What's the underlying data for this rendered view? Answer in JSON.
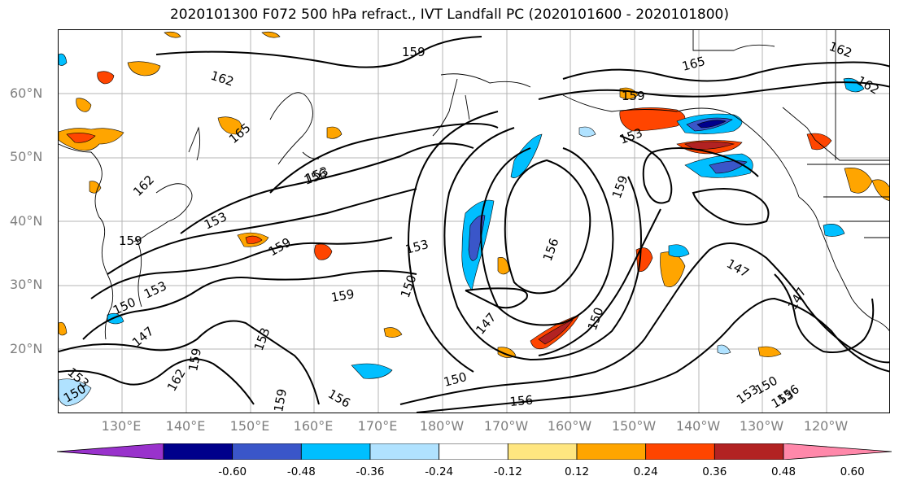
{
  "title": "2020101300 F072 500 hPa refract., IVT Landfall PC (2020101600 - 2020101800)",
  "lat_labels": [
    "60°N",
    "50°N",
    "40°N",
    "30°N",
    "20°N"
  ],
  "lon_labels": [
    "130°E",
    "140°E",
    "150°E",
    "160°E",
    "170°E",
    "180°W",
    "170°W",
    "160°W",
    "150°W",
    "140°W",
    "130°W",
    "120°W"
  ],
  "contour_labels": [
    "162",
    "165",
    "159",
    "165",
    "162",
    "162",
    "153",
    "153",
    "159",
    "156",
    "159",
    "153",
    "159",
    "153",
    "150",
    "147",
    "159",
    "153",
    "150",
    "156",
    "147",
    "150",
    "147",
    "150",
    "156",
    "159",
    "153",
    "159",
    "147",
    "153",
    "150",
    "156",
    "162",
    "156",
    "159",
    "153",
    "153",
    "150",
    "162"
  ],
  "colorbar": {
    "ticks": [
      "-0.60",
      "-0.48",
      "-0.36",
      "-0.24",
      "-0.12",
      "0.12",
      "0.24",
      "0.36",
      "0.48",
      "0.60"
    ],
    "colors": [
      "#9932cc",
      "#00008b",
      "#3a56c9",
      "#00bfff",
      "#b0e2ff",
      "#ffffff",
      "#ffe680",
      "#ffa500",
      "#ff4500",
      "#b22222",
      "#ff88aa"
    ]
  },
  "colors": {
    "contour": "#000000",
    "coastline": "#000000",
    "grid": "#b4b4b4",
    "axis_label": "#7f7f7f"
  }
}
